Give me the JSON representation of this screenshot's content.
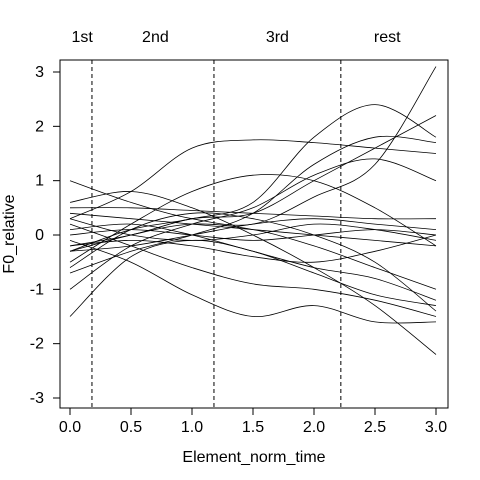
{
  "chart_data": {
    "type": "line",
    "xlabel": "Element_norm_time",
    "ylabel": "F0_relative",
    "xlim": [
      0.0,
      3.0
    ],
    "ylim": [
      -3,
      3
    ],
    "x_ticks": [
      "0.0",
      "0.5",
      "1.0",
      "1.5",
      "2.0",
      "2.5",
      "3.0"
    ],
    "y_ticks": [
      "-3",
      "-2",
      "-1",
      "0",
      "1",
      "2",
      "3"
    ],
    "grid": false,
    "legend": "none",
    "line_color": "#000000",
    "boundaries": [
      0.18,
      1.18,
      2.22
    ],
    "region_labels": [
      {
        "text": "1st",
        "x": 0.1
      },
      {
        "text": "2nd",
        "x": 0.7
      },
      {
        "text": "3rd",
        "x": 1.7
      },
      {
        "text": "rest",
        "x": 2.6
      }
    ],
    "x": [
      0.0,
      0.5,
      1.0,
      1.5,
      2.0,
      2.5,
      3.0
    ],
    "series": [
      {
        "values": [
          1.0,
          0.6,
          0.3,
          0.2,
          0.7,
          1.3,
          3.1
        ]
      },
      {
        "values": [
          0.3,
          0.8,
          1.6,
          1.75,
          1.7,
          1.6,
          1.5
        ]
      },
      {
        "values": [
          -0.3,
          0.1,
          0.3,
          0.6,
          1.8,
          2.4,
          1.8
        ]
      },
      {
        "values": [
          -0.2,
          0.0,
          0.3,
          0.4,
          1.0,
          1.6,
          2.2
        ]
      },
      {
        "values": [
          -0.7,
          -0.3,
          0.0,
          0.4,
          1.3,
          1.8,
          1.7
        ]
      },
      {
        "values": [
          -1.0,
          -0.2,
          0.2,
          0.5,
          1.1,
          1.4,
          1.0
        ]
      },
      {
        "values": [
          -0.5,
          0.2,
          0.8,
          1.1,
          1.0,
          0.5,
          -0.2
        ]
      },
      {
        "values": [
          0.5,
          0.5,
          0.45,
          0.4,
          0.35,
          0.3,
          0.3
        ]
      },
      {
        "values": [
          0.4,
          0.3,
          0.2,
          0.1,
          0.0,
          -0.1,
          -0.2
        ]
      },
      {
        "values": [
          0.0,
          0.1,
          0.0,
          -0.1,
          0.0,
          0.1,
          0.0
        ]
      },
      {
        "values": [
          -0.2,
          -0.1,
          -0.2,
          -0.4,
          -0.5,
          -0.3,
          0.0
        ]
      },
      {
        "values": [
          -0.3,
          0.0,
          0.2,
          0.1,
          -0.2,
          -0.6,
          -1.0
        ]
      },
      {
        "values": [
          0.6,
          0.8,
          0.5,
          0.0,
          -0.6,
          -1.3,
          -2.2
        ]
      },
      {
        "values": [
          0.2,
          -0.2,
          -0.6,
          -0.9,
          -1.0,
          -1.2,
          -1.5
        ]
      },
      {
        "values": [
          -0.1,
          -0.5,
          -1.1,
          -1.5,
          -1.3,
          -1.6,
          -1.6
        ]
      },
      {
        "values": [
          -0.6,
          0.1,
          0.4,
          0.3,
          0.0,
          -0.5,
          -1.4
        ]
      },
      {
        "values": [
          -1.5,
          -0.4,
          -0.1,
          -0.3,
          -0.7,
          -1.1,
          -1.3
        ]
      },
      {
        "values": [
          0.1,
          0.2,
          0.0,
          -0.3,
          -0.6,
          -0.8,
          -1.2
        ]
      },
      {
        "values": [
          0.3,
          0.0,
          -0.1,
          0.0,
          0.2,
          0.1,
          -0.1
        ]
      },
      {
        "values": [
          -0.3,
          -0.2,
          0.0,
          0.2,
          0.3,
          0.2,
          0.1
        ]
      }
    ]
  }
}
